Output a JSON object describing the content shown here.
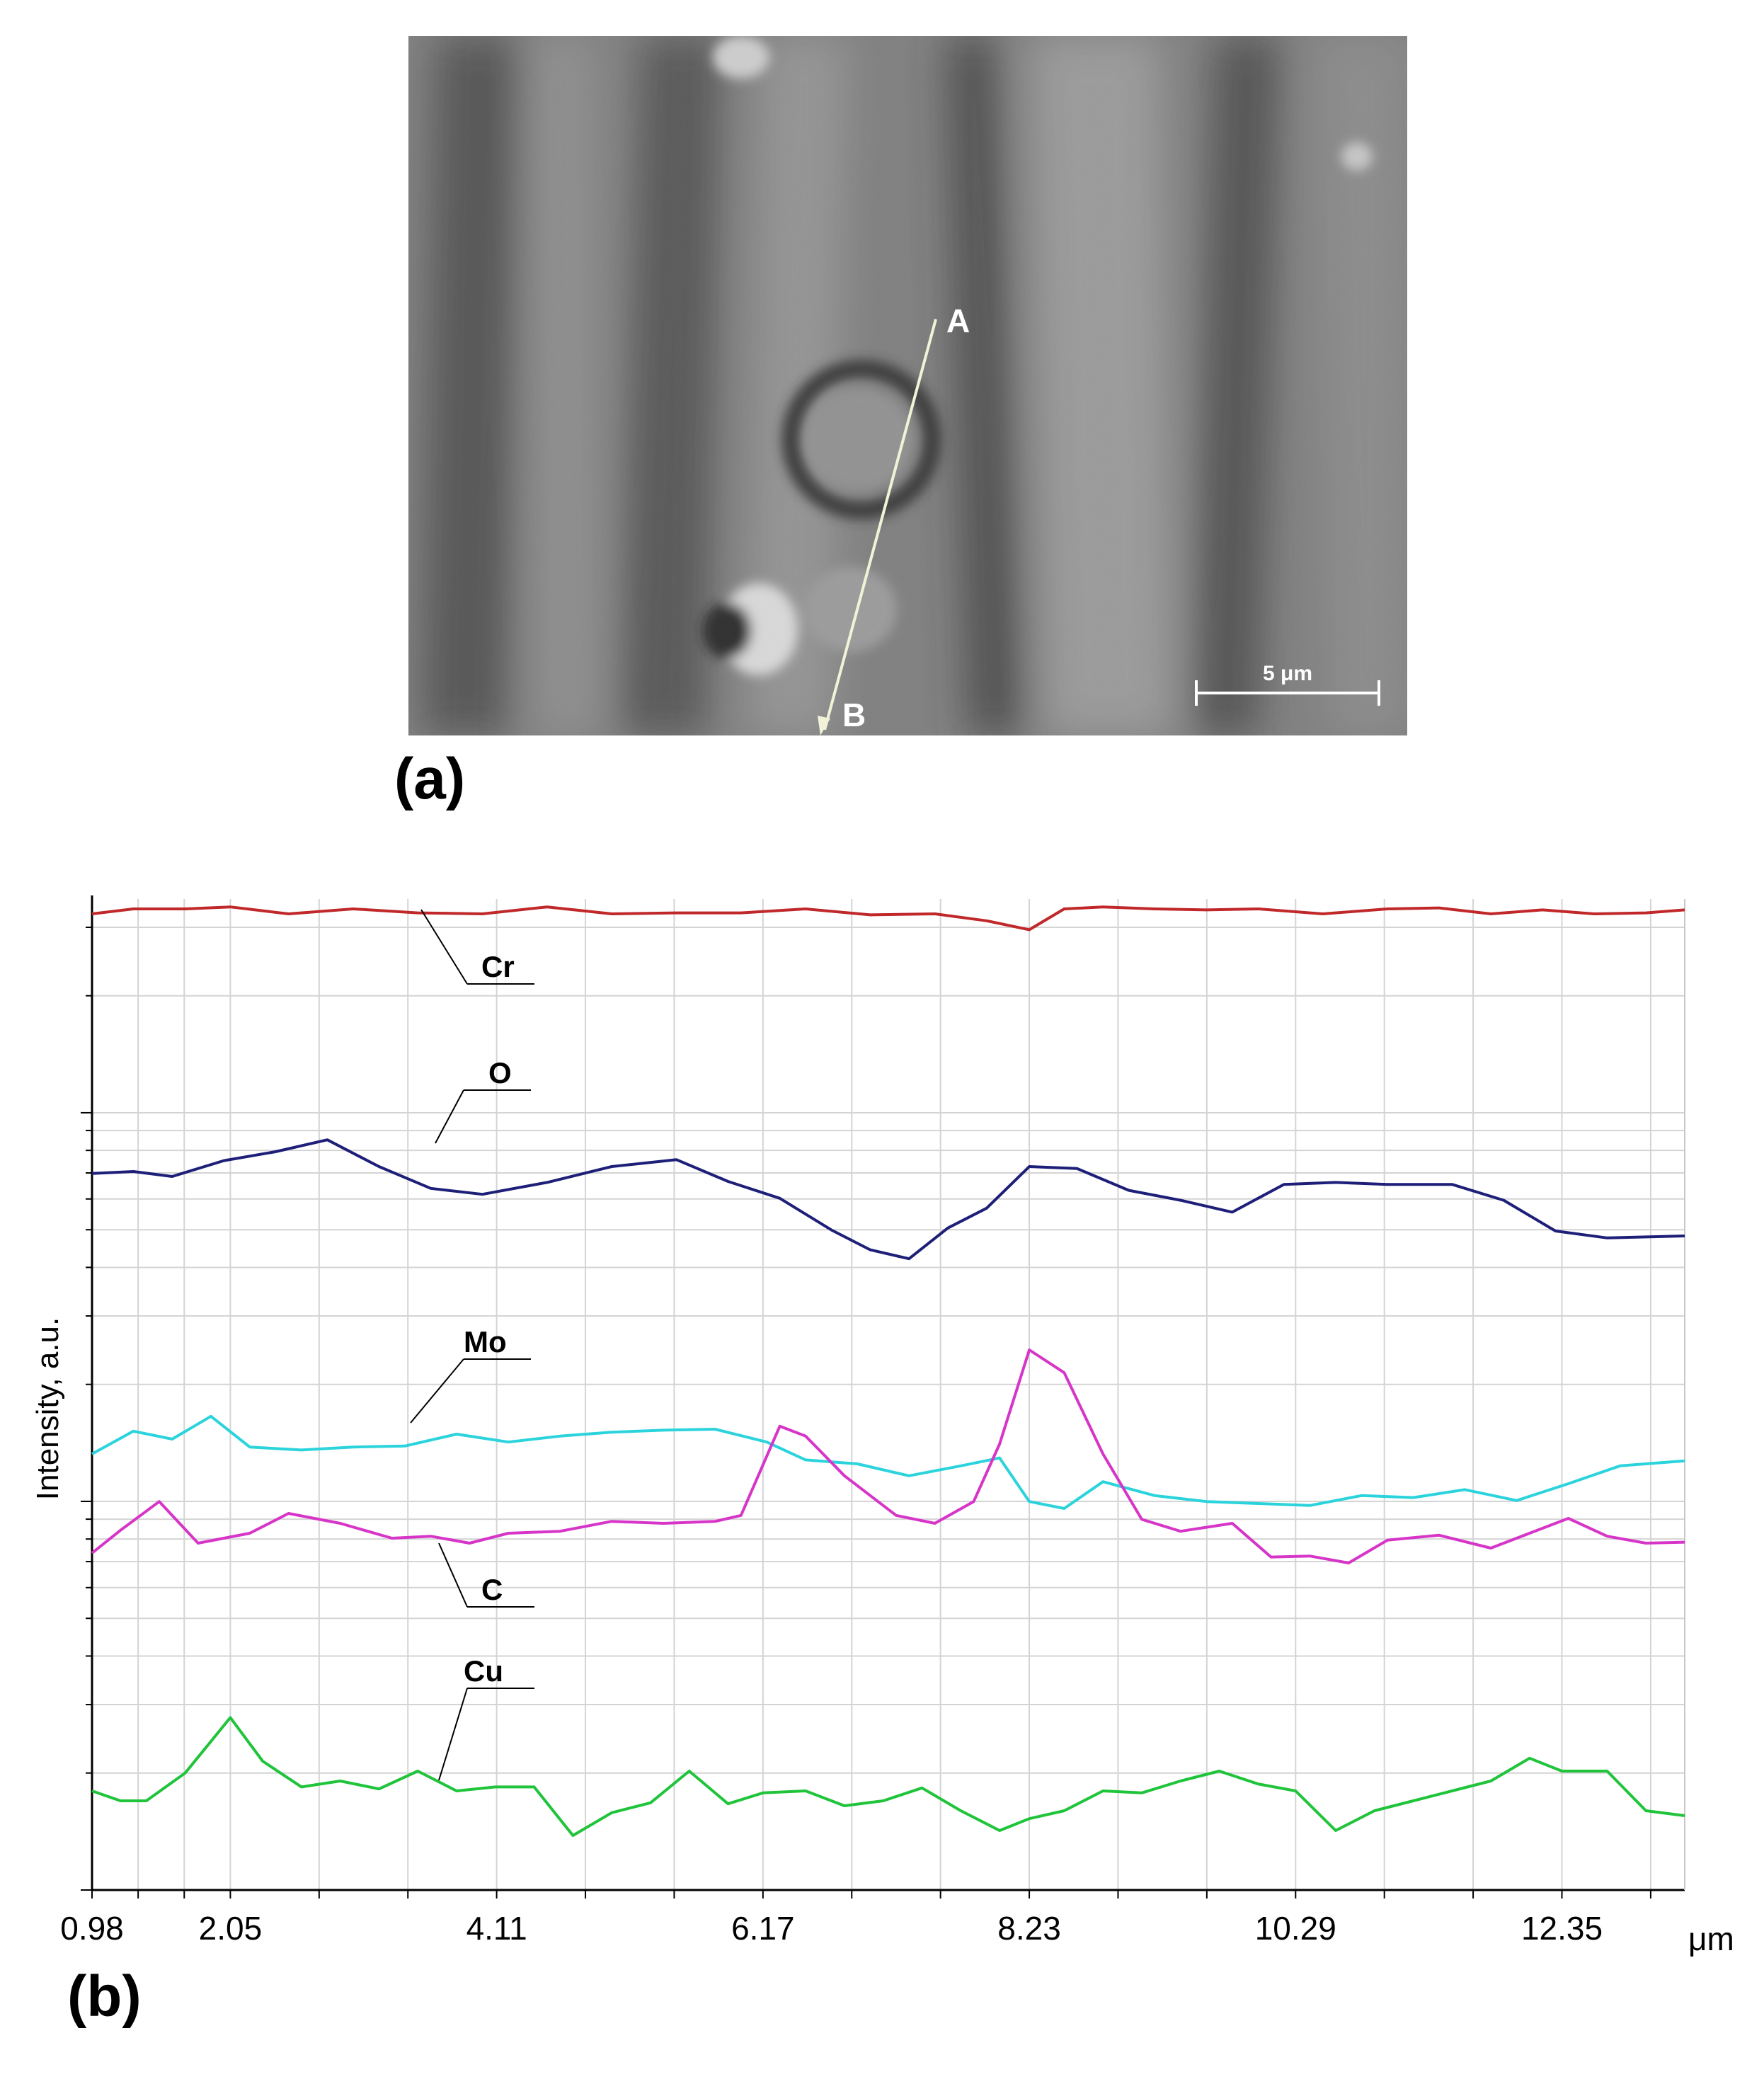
{
  "panel_labels": {
    "a": "(a)",
    "b": "(b)"
  },
  "micrograph": {
    "point_start": "A",
    "point_end": "B",
    "scale_bar_label": "5 μm"
  },
  "chart_data": {
    "type": "line",
    "xlabel": "μm",
    "ylabel": "Intensity, a.u.",
    "x_ticks": [
      "0.98",
      "2.05",
      "4.11",
      "6.17",
      "8.23",
      "10.29",
      "12.35"
    ],
    "xlim": [
      0.98,
      13.3
    ],
    "ylim": [
      0,
      1
    ],
    "grid": true,
    "legend": "inline callouts",
    "colors": {
      "Cr": "#c0282a",
      "O": "#1d1f78",
      "Mo": "#2bd3dc",
      "C": "#d635c8",
      "Cu": "#1fc43a"
    },
    "series": [
      {
        "name": "Cr",
        "x": [
          0.98,
          1.3,
          1.7,
          2.05,
          2.5,
          3.0,
          3.5,
          4.0,
          4.5,
          5.0,
          5.5,
          6.0,
          6.5,
          7.0,
          7.5,
          7.9,
          8.23,
          8.5,
          8.8,
          9.2,
          9.6,
          10.0,
          10.5,
          11.0,
          11.4,
          11.8,
          12.2,
          12.6,
          13.0,
          13.3
        ],
        "values": [
          0.985,
          0.99,
          0.99,
          0.992,
          0.985,
          0.99,
          0.986,
          0.985,
          0.992,
          0.985,
          0.986,
          0.986,
          0.99,
          0.984,
          0.985,
          0.978,
          0.969,
          0.99,
          0.992,
          0.99,
          0.989,
          0.99,
          0.985,
          0.99,
          0.991,
          0.985,
          0.989,
          0.985,
          0.986,
          0.989
        ],
        "label": "Cr"
      },
      {
        "name": "O",
        "x": [
          0.98,
          1.3,
          1.6,
          2.0,
          2.4,
          2.8,
          3.2,
          3.6,
          4.0,
          4.5,
          5.0,
          5.5,
          5.9,
          6.3,
          6.7,
          7.0,
          7.3,
          7.6,
          7.9,
          8.23,
          8.6,
          9.0,
          9.4,
          9.8,
          10.2,
          10.6,
          11.0,
          11.5,
          11.9,
          12.3,
          12.7,
          13.3
        ],
        "values": [
          0.723,
          0.725,
          0.72,
          0.736,
          0.745,
          0.757,
          0.73,
          0.708,
          0.702,
          0.714,
          0.73,
          0.737,
          0.715,
          0.698,
          0.666,
          0.646,
          0.637,
          0.668,
          0.688,
          0.73,
          0.728,
          0.706,
          0.696,
          0.684,
          0.712,
          0.714,
          0.712,
          0.712,
          0.696,
          0.665,
          0.658,
          0.66
        ],
        "label": "O"
      },
      {
        "name": "Mo",
        "x": [
          0.98,
          1.3,
          1.6,
          1.9,
          2.2,
          2.6,
          3.0,
          3.4,
          3.8,
          4.2,
          4.6,
          5.0,
          5.4,
          5.8,
          6.2,
          6.5,
          6.9,
          7.3,
          7.7,
          8.0,
          8.23,
          8.5,
          8.8,
          9.2,
          9.6,
          10.0,
          10.4,
          10.8,
          11.2,
          11.6,
          12.0,
          12.4,
          12.8,
          13.3
        ],
        "values": [
          0.44,
          0.463,
          0.455,
          0.478,
          0.447,
          0.444,
          0.447,
          0.448,
          0.46,
          0.452,
          0.458,
          0.462,
          0.464,
          0.465,
          0.452,
          0.434,
          0.43,
          0.418,
          0.428,
          0.436,
          0.392,
          0.385,
          0.412,
          0.398,
          0.392,
          0.39,
          0.388,
          0.398,
          0.396,
          0.404,
          0.393,
          0.41,
          0.428,
          0.433
        ],
        "label": "Mo"
      },
      {
        "name": "C",
        "x": [
          0.98,
          1.2,
          1.5,
          1.8,
          2.2,
          2.5,
          2.9,
          3.3,
          3.6,
          3.9,
          4.2,
          4.6,
          5.0,
          5.4,
          5.8,
          6.0,
          6.3,
          6.5,
          6.8,
          7.2,
          7.5,
          7.8,
          8.0,
          8.23,
          8.5,
          8.8,
          9.1,
          9.4,
          9.8,
          10.1,
          10.4,
          10.7,
          11.0,
          11.4,
          11.8,
          12.1,
          12.4,
          12.7,
          13.0,
          13.3
        ],
        "values": [
          0.34,
          0.363,
          0.392,
          0.35,
          0.36,
          0.38,
          0.37,
          0.355,
          0.357,
          0.35,
          0.36,
          0.362,
          0.372,
          0.37,
          0.372,
          0.378,
          0.468,
          0.458,
          0.418,
          0.378,
          0.37,
          0.392,
          0.45,
          0.545,
          0.522,
          0.44,
          0.374,
          0.362,
          0.37,
          0.336,
          0.337,
          0.33,
          0.353,
          0.358,
          0.345,
          0.36,
          0.375,
          0.357,
          0.35,
          0.351
        ],
        "label": "C"
      },
      {
        "name": "Cu",
        "x": [
          0.98,
          1.2,
          1.4,
          1.7,
          2.05,
          2.3,
          2.6,
          2.9,
          3.2,
          3.5,
          3.8,
          4.1,
          4.4,
          4.7,
          5.0,
          5.3,
          5.6,
          5.9,
          6.17,
          6.5,
          6.8,
          7.1,
          7.4,
          7.7,
          8.0,
          8.23,
          8.5,
          8.8,
          9.1,
          9.4,
          9.7,
          10.0,
          10.29,
          10.6,
          10.9,
          11.2,
          11.5,
          11.8,
          12.1,
          12.35,
          12.7,
          13.0,
          13.3
        ],
        "values": [
          0.1,
          0.09,
          0.09,
          0.118,
          0.174,
          0.13,
          0.104,
          0.11,
          0.102,
          0.12,
          0.1,
          0.104,
          0.104,
          0.055,
          0.078,
          0.088,
          0.12,
          0.087,
          0.098,
          0.1,
          0.085,
          0.09,
          0.103,
          0.08,
          0.06,
          0.072,
          0.08,
          0.1,
          0.098,
          0.11,
          0.12,
          0.107,
          0.1,
          0.06,
          0.08,
          0.09,
          0.1,
          0.11,
          0.133,
          0.12,
          0.12,
          0.08,
          0.075
        ],
        "label": "Cu"
      }
    ]
  }
}
